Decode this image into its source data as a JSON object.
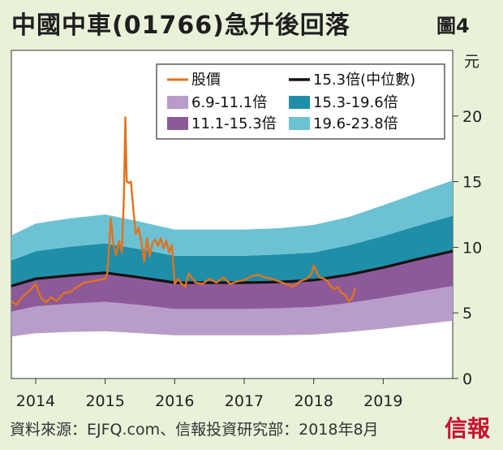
{
  "title": "中國中車(01766)急升後回落",
  "figure_label": "圖4",
  "footer": "資料來源：EJFQ.com、信報投資研究部：2018年8月",
  "brand": "信報",
  "colors": {
    "background": "#e9f1d9",
    "plot_bg": "#ffffff",
    "band_low_outer": "#b89cc9",
    "band_low_inner": "#8d5a99",
    "band_high_inner": "#1f8ea8",
    "band_high_outer": "#6cc2d3",
    "median": "#111111",
    "price": "#e0731e"
  },
  "chart_data": {
    "type": "line",
    "title": "中國中車(01766)急升後回落",
    "ylabel": "元",
    "ylim": [
      0,
      25
    ],
    "xlim": [
      2013.65,
      2020.0
    ],
    "grid": false,
    "legend_position": "top-right",
    "x_ticks": [
      "2014",
      "2015",
      "2016",
      "2017",
      "2018",
      "2019"
    ],
    "y_ticks": [
      "0",
      "5",
      "10",
      "15",
      "20"
    ],
    "legend": [
      {
        "label": "股價",
        "kind": "line",
        "color": "#e0731e"
      },
      {
        "label": "15.3倍(中位數)",
        "kind": "line",
        "color": "#111111"
      },
      {
        "label": "6.9-11.1倍",
        "kind": "box",
        "color": "#b89cc9"
      },
      {
        "label": "15.3-19.6倍",
        "kind": "box",
        "color": "#1f8ea8"
      },
      {
        "label": "11.1-15.3倍",
        "kind": "box",
        "color": "#8d5a99"
      },
      {
        "label": "19.6-23.8倍",
        "kind": "box",
        "color": "#6cc2d3"
      }
    ],
    "bands": {
      "x": [
        2013.65,
        2014.0,
        2014.5,
        2015.0,
        2015.5,
        2016.0,
        2016.5,
        2017.0,
        2017.5,
        2018.0,
        2018.5,
        2019.0,
        2019.5,
        2020.0
      ],
      "pe_6_9": [
        3.2,
        3.45,
        3.55,
        3.6,
        3.45,
        3.3,
        3.3,
        3.3,
        3.3,
        3.35,
        3.55,
        3.8,
        4.1,
        4.4
      ],
      "pe_11_1": [
        5.1,
        5.5,
        5.7,
        5.85,
        5.6,
        5.3,
        5.3,
        5.3,
        5.35,
        5.45,
        5.75,
        6.15,
        6.6,
        7.05
      ],
      "pe_15_3": [
        7.05,
        7.6,
        7.85,
        8.05,
        7.7,
        7.3,
        7.3,
        7.3,
        7.35,
        7.5,
        7.9,
        8.45,
        9.1,
        9.7
      ],
      "pe_19_6": [
        9.0,
        9.7,
        10.05,
        10.3,
        9.85,
        9.35,
        9.35,
        9.35,
        9.45,
        9.6,
        10.15,
        10.85,
        11.65,
        12.4
      ],
      "pe_23_8": [
        10.9,
        11.8,
        12.2,
        12.5,
        11.95,
        11.35,
        11.35,
        11.35,
        11.45,
        11.7,
        12.3,
        13.2,
        14.15,
        15.1
      ]
    },
    "price": {
      "x": [
        2013.65,
        2013.72,
        2013.8,
        2013.9,
        2014.0,
        2014.08,
        2014.15,
        2014.22,
        2014.3,
        2014.4,
        2014.5,
        2014.6,
        2014.7,
        2014.8,
        2014.9,
        2015.0,
        2015.03,
        2015.05,
        2015.08,
        2015.12,
        2015.16,
        2015.2,
        2015.24,
        2015.27,
        2015.29,
        2015.31,
        2015.34,
        2015.37,
        2015.4,
        2015.44,
        2015.48,
        2015.52,
        2015.56,
        2015.6,
        2015.64,
        2015.68,
        2015.72,
        2015.76,
        2015.8,
        2015.84,
        2015.88,
        2015.92,
        2015.96,
        2016.0,
        2016.05,
        2016.1,
        2016.15,
        2016.2,
        2016.3,
        2016.4,
        2016.5,
        2016.6,
        2016.7,
        2016.8,
        2016.9,
        2017.0,
        2017.1,
        2017.2,
        2017.3,
        2017.4,
        2017.5,
        2017.6,
        2017.7,
        2017.8,
        2017.9,
        2017.97,
        2018.0,
        2018.03,
        2018.08,
        2018.15,
        2018.2,
        2018.25,
        2018.3,
        2018.35,
        2018.4,
        2018.45,
        2018.5,
        2018.55,
        2018.6
      ],
      "y": [
        5.9,
        5.6,
        6.2,
        6.6,
        7.2,
        6.1,
        5.8,
        6.2,
        5.9,
        6.5,
        6.6,
        7.0,
        7.3,
        7.4,
        7.5,
        7.6,
        8.0,
        9.5,
        12.2,
        10.1,
        9.4,
        10.5,
        9.6,
        14.0,
        19.9,
        15.0,
        14.9,
        15.0,
        13.2,
        11.0,
        11.5,
        10.4,
        8.9,
        10.7,
        9.3,
        10.3,
        10.6,
        10.1,
        10.7,
        9.9,
        10.5,
        9.6,
        10.2,
        7.2,
        7.6,
        7.2,
        7.0,
        8.0,
        7.3,
        7.2,
        7.6,
        7.3,
        7.7,
        7.2,
        7.4,
        7.5,
        7.8,
        7.9,
        7.7,
        7.6,
        7.4,
        7.2,
        7.0,
        7.4,
        7.6,
        8.0,
        8.6,
        8.3,
        7.7,
        7.6,
        7.4,
        7.0,
        6.8,
        7.0,
        6.5,
        6.4,
        5.9,
        6.1,
        6.9
      ]
    }
  }
}
